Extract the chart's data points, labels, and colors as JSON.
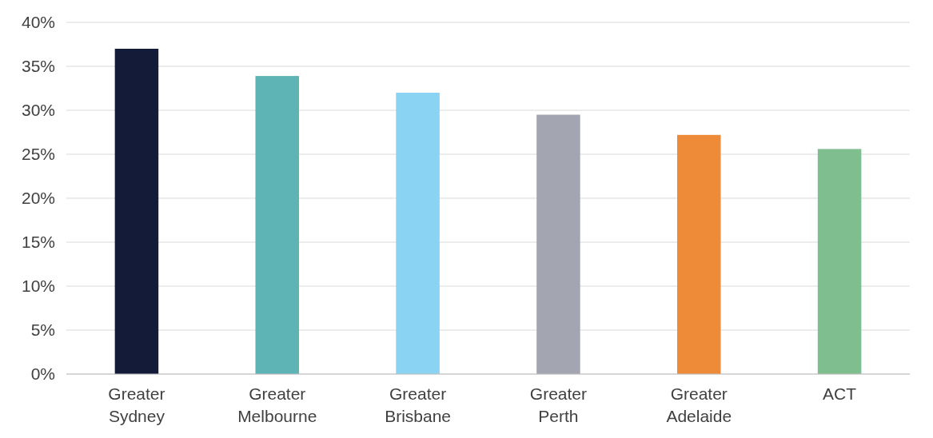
{
  "chart_data": {
    "type": "bar",
    "categories": [
      "Greater Sydney",
      "Greater Melbourne",
      "Greater Brisbane",
      "Greater Perth",
      "Greater Adelaide",
      "ACT"
    ],
    "values": [
      37.0,
      33.9,
      32.0,
      29.5,
      27.2,
      25.6
    ],
    "colors": [
      "#141b38",
      "#5eb3b4",
      "#8bd3f3",
      "#a3a6b1",
      "#ed8b38",
      "#7fbf8f"
    ],
    "ylim": [
      0,
      40
    ],
    "yticks": [
      {
        "value": 0,
        "label": "0%"
      },
      {
        "value": 5,
        "label": "5%"
      },
      {
        "value": 10,
        "label": "10%"
      },
      {
        "value": 15,
        "label": "15%"
      },
      {
        "value": 20,
        "label": "20%"
      },
      {
        "value": 25,
        "label": "25%"
      },
      {
        "value": 30,
        "label": "30%"
      },
      {
        "value": 35,
        "label": "35%"
      },
      {
        "value": 40,
        "label": "40%"
      }
    ],
    "grid": "y"
  }
}
